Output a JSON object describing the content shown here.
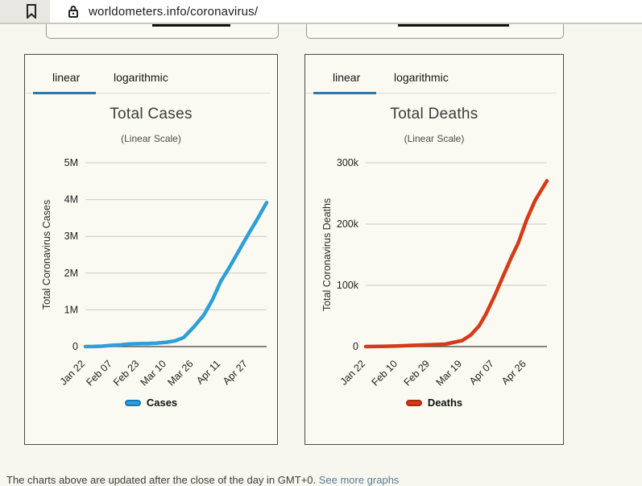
{
  "browser": {
    "url": "worldometers.info/coronavirus/"
  },
  "stubs": {
    "note": "bottom edges of two cut-off chart boxes from section above"
  },
  "panels": [
    {
      "tabs": [
        {
          "label": "linear",
          "active": true
        },
        {
          "label": "logarithmic",
          "active": false
        }
      ]
    },
    {
      "tabs": [
        {
          "label": "linear",
          "active": true
        },
        {
          "label": "logarithmic",
          "active": false
        }
      ]
    }
  ],
  "footer": {
    "text": "The charts above are updated after the close of the day in GMT+0. ",
    "link_text": "See more graphs"
  },
  "chart_data": [
    {
      "type": "line",
      "title": "Total Cases",
      "subtitle": "(Linear Scale)",
      "ylabel": "Total Coronavirus Cases",
      "legend": "Cases",
      "line_color": "#2d9fd9",
      "line_edge_color": "#1878b8",
      "ylim": [
        0,
        5000000
      ],
      "grid": true,
      "legend_position": "bottom",
      "y_ticks": [
        {
          "label": "5M",
          "value": 5000000
        },
        {
          "label": "4M",
          "value": 4000000
        },
        {
          "label": "3M",
          "value": 3000000
        },
        {
          "label": "2M",
          "value": 2000000
        },
        {
          "label": "1M",
          "value": 1000000
        },
        {
          "label": "0",
          "value": 0
        }
      ],
      "x_ticks": [
        {
          "label": "Jan 22",
          "day": 0
        },
        {
          "label": "Feb 07",
          "day": 16
        },
        {
          "label": "Feb 23",
          "day": 32
        },
        {
          "label": "Mar 10",
          "day": 48
        },
        {
          "label": "Mar 26",
          "day": 64
        },
        {
          "label": "Apr 11",
          "day": 80
        },
        {
          "label": "Apr 27",
          "day": 96
        }
      ],
      "x_range_days": [
        0,
        107
      ],
      "points": [
        {
          "date": "Jan 22",
          "day": 0,
          "value": 580
        },
        {
          "date": "Jan 27",
          "day": 5,
          "value": 2800
        },
        {
          "date": "Feb 01",
          "day": 10,
          "value": 12000
        },
        {
          "date": "Feb 07",
          "day": 16,
          "value": 34800
        },
        {
          "date": "Feb 12",
          "day": 21,
          "value": 45200
        },
        {
          "date": "Feb 17",
          "day": 26,
          "value": 71300
        },
        {
          "date": "Feb 23",
          "day": 32,
          "value": 78900
        },
        {
          "date": "Feb 28",
          "day": 37,
          "value": 83700
        },
        {
          "date": "Mar 04",
          "day": 42,
          "value": 93000
        },
        {
          "date": "Mar 10",
          "day": 48,
          "value": 119200
        },
        {
          "date": "Mar 15",
          "day": 53,
          "value": 156400
        },
        {
          "date": "Mar 20",
          "day": 58,
          "value": 244900
        },
        {
          "date": "Mar 26",
          "day": 64,
          "value": 532000
        },
        {
          "date": "Apr 01",
          "day": 70,
          "value": 861000
        },
        {
          "date": "Apr 06",
          "day": 75,
          "value": 1273000
        },
        {
          "date": "Apr 11",
          "day": 80,
          "value": 1780000
        },
        {
          "date": "Apr 16",
          "day": 85,
          "value": 2152000
        },
        {
          "date": "Apr 21",
          "day": 90,
          "value": 2560000
        },
        {
          "date": "Apr 27",
          "day": 96,
          "value": 3041000
        },
        {
          "date": "May 02",
          "day": 101,
          "value": 3427000
        },
        {
          "date": "May 08",
          "day": 107,
          "value": 3918000
        }
      ]
    },
    {
      "type": "line",
      "title": "Total Deaths",
      "subtitle": "(Linear Scale)",
      "ylabel": "Total Coronavirus Deaths",
      "legend": "Deaths",
      "line_color": "#d63b15",
      "line_edge_color": "#a82c0e",
      "ylim": [
        0,
        300000
      ],
      "grid": true,
      "legend_position": "bottom",
      "y_ticks": [
        {
          "label": "300k",
          "value": 300000
        },
        {
          "label": "200k",
          "value": 200000
        },
        {
          "label": "100k",
          "value": 100000
        },
        {
          "label": "0",
          "value": 0
        }
      ],
      "x_ticks": [
        {
          "label": "Jan 22",
          "day": 0
        },
        {
          "label": "Feb 10",
          "day": 19
        },
        {
          "label": "Feb 29",
          "day": 38
        },
        {
          "label": "Mar 19",
          "day": 57
        },
        {
          "label": "Apr 07",
          "day": 76
        },
        {
          "label": "Apr 26",
          "day": 95
        }
      ],
      "x_range_days": [
        0,
        107
      ],
      "points": [
        {
          "date": "Jan 22",
          "day": 0,
          "value": 17
        },
        {
          "date": "Feb 01",
          "day": 10,
          "value": 259
        },
        {
          "date": "Feb 10",
          "day": 19,
          "value": 1016
        },
        {
          "date": "Feb 19",
          "day": 28,
          "value": 2012
        },
        {
          "date": "Feb 29",
          "day": 38,
          "value": 2977
        },
        {
          "date": "Mar 09",
          "day": 47,
          "value": 3997
        },
        {
          "date": "Mar 19",
          "day": 57,
          "value": 9881
        },
        {
          "date": "Mar 24",
          "day": 62,
          "value": 18900
        },
        {
          "date": "Mar 29",
          "day": 67,
          "value": 33900
        },
        {
          "date": "Apr 02",
          "day": 71,
          "value": 53200
        },
        {
          "date": "Apr 07",
          "day": 76,
          "value": 82100
        },
        {
          "date": "Apr 12",
          "day": 81,
          "value": 114200
        },
        {
          "date": "Apr 17",
          "day": 86,
          "value": 145500
        },
        {
          "date": "Apr 21",
          "day": 90,
          "value": 169000
        },
        {
          "date": "Apr 26",
          "day": 95,
          "value": 207000
        },
        {
          "date": "May 01",
          "day": 100,
          "value": 238600
        },
        {
          "date": "May 08",
          "day": 107,
          "value": 270700
        }
      ]
    }
  ]
}
